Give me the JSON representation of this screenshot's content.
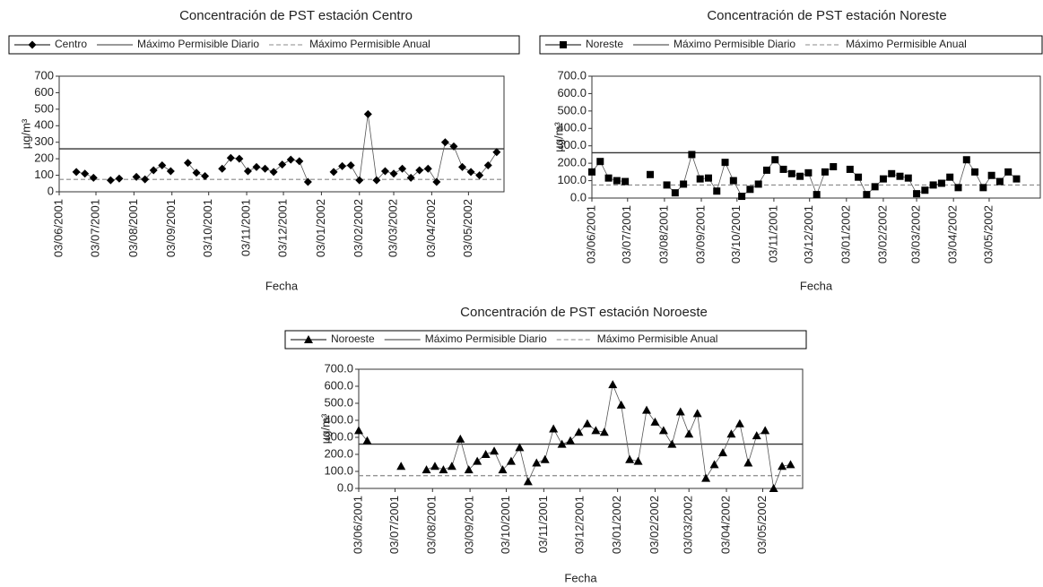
{
  "chart_data": [
    {
      "type": "line",
      "title": "Concentración de PST estación Centro",
      "xlabel": "Fecha",
      "ylabel": "µg/m³",
      "x": [
        "2001-06-03",
        "2001-06-10",
        "2001-06-17",
        "2001-06-24",
        "2001-07-01",
        "2001-07-08",
        "2001-07-15",
        "2001-07-22",
        "2001-07-29",
        "2001-08-05",
        "2001-08-12",
        "2001-08-19",
        "2001-08-26",
        "2001-09-02",
        "2001-09-09",
        "2001-09-16",
        "2001-09-23",
        "2001-09-30",
        "2001-10-07",
        "2001-10-14",
        "2001-10-21",
        "2001-10-28",
        "2001-11-04",
        "2001-11-11",
        "2001-11-18",
        "2001-11-25",
        "2001-12-02",
        "2001-12-09",
        "2001-12-16",
        "2001-12-23",
        "2001-12-30",
        "2002-01-06",
        "2002-01-13",
        "2002-01-20",
        "2002-01-27",
        "2002-02-03",
        "2002-02-10",
        "2002-02-17",
        "2002-02-24",
        "2002-03-03",
        "2002-03-10",
        "2002-03-17",
        "2002-03-24",
        "2002-03-31",
        "2002-04-07",
        "2002-04-14",
        "2002-04-21",
        "2002-04-28",
        "2002-05-05",
        "2002-05-12",
        "2002-05-19",
        "2002-05-26"
      ],
      "series": [
        {
          "name": "Centro",
          "color": "#000000",
          "marker": "diamond",
          "values": [
            null,
            null,
            120,
            110,
            85,
            null,
            70,
            80,
            null,
            90,
            75,
            130,
            160,
            125,
            null,
            175,
            115,
            95,
            null,
            140,
            205,
            200,
            125,
            150,
            140,
            120,
            165,
            195,
            185,
            60,
            null,
            null,
            120,
            155,
            160,
            70,
            470,
            70,
            125,
            110,
            140,
            85,
            130,
            140,
            60,
            300,
            275,
            150,
            120,
            100,
            160,
            240
          ]
        }
      ],
      "reference_lines": [
        {
          "name": "Máximo Permisible Diario",
          "value": 260,
          "style": "solid"
        },
        {
          "name": "Máximo Permisible Anual",
          "value": 75,
          "style": "dashed"
        }
      ],
      "xlim": [
        "2001-06-03",
        "2002-06-01"
      ],
      "xticks": [
        {
          "value": "2001-06-03",
          "label": "03/06/2001"
        },
        {
          "value": "2001-07-03",
          "label": "03/07/2001"
        },
        {
          "value": "2001-08-03",
          "label": "03/08/2001"
        },
        {
          "value": "2001-09-03",
          "label": "03/09/2001"
        },
        {
          "value": "2001-10-03",
          "label": "03/10/2001"
        },
        {
          "value": "2001-11-03",
          "label": "03/11/2001"
        },
        {
          "value": "2001-12-03",
          "label": "03/12/2001"
        },
        {
          "value": "2002-01-03",
          "label": "03/01/2002"
        },
        {
          "value": "2002-02-03",
          "label": "03/02/2002"
        },
        {
          "value": "2002-03-03",
          "label": "03/03/2002"
        },
        {
          "value": "2002-04-03",
          "label": "03/04/2002"
        },
        {
          "value": "2002-05-03",
          "label": "03/05/2002"
        }
      ],
      "ylim": [
        0,
        700
      ],
      "yticks": [
        0,
        100,
        200,
        300,
        400,
        500,
        600,
        700
      ]
    },
    {
      "type": "line",
      "title": "Concentración de PST estación Noreste",
      "xlabel": "Fecha",
      "ylabel": "µg/m³",
      "x": [
        "2001-06-03",
        "2001-06-10",
        "2001-06-17",
        "2001-06-24",
        "2001-07-01",
        "2001-07-08",
        "2001-07-15",
        "2001-07-22",
        "2001-07-29",
        "2001-08-05",
        "2001-08-12",
        "2001-08-19",
        "2001-08-26",
        "2001-09-02",
        "2001-09-09",
        "2001-09-16",
        "2001-09-23",
        "2001-09-30",
        "2001-10-07",
        "2001-10-14",
        "2001-10-21",
        "2001-10-28",
        "2001-11-04",
        "2001-11-11",
        "2001-11-18",
        "2001-11-25",
        "2001-12-02",
        "2001-12-09",
        "2001-12-16",
        "2001-12-23",
        "2001-12-30",
        "2002-01-06",
        "2002-01-13",
        "2002-01-20",
        "2002-01-27",
        "2002-02-03",
        "2002-02-10",
        "2002-02-17",
        "2002-02-24",
        "2002-03-03",
        "2002-03-10",
        "2002-03-17",
        "2002-03-24",
        "2002-03-31",
        "2002-04-07",
        "2002-04-14",
        "2002-04-21",
        "2002-04-28",
        "2002-05-05",
        "2002-05-12",
        "2002-05-19",
        "2002-05-26"
      ],
      "series": [
        {
          "name": "Noreste",
          "color": "#000000",
          "marker": "square",
          "values": [
            150,
            210,
            115,
            100,
            95,
            null,
            null,
            135,
            null,
            75,
            30,
            80,
            250,
            110,
            115,
            40,
            205,
            100,
            10,
            50,
            80,
            160,
            220,
            165,
            140,
            125,
            145,
            20,
            150,
            180,
            null,
            165,
            120,
            20,
            65,
            110,
            140,
            125,
            115,
            25,
            45,
            75,
            85,
            120,
            60,
            220,
            150,
            60,
            130,
            95,
            150,
            110
          ]
        }
      ],
      "reference_lines": [
        {
          "name": "Máximo Permisible Diario",
          "value": 260,
          "style": "solid"
        },
        {
          "name": "Máximo Permisible Anual",
          "value": 75,
          "style": "dashed"
        }
      ],
      "xlim": [
        "2001-06-03",
        "2002-06-15"
      ],
      "xticks": [
        {
          "value": "2001-06-03",
          "label": "03/06/2001"
        },
        {
          "value": "2001-07-03",
          "label": "03/07/2001"
        },
        {
          "value": "2001-08-03",
          "label": "03/08/2001"
        },
        {
          "value": "2001-09-03",
          "label": "03/09/2001"
        },
        {
          "value": "2001-10-03",
          "label": "03/10/2001"
        },
        {
          "value": "2001-11-03",
          "label": "03/11/2001"
        },
        {
          "value": "2001-12-03",
          "label": "03/12/2001"
        },
        {
          "value": "2002-01-03",
          "label": "03/01/2002"
        },
        {
          "value": "2002-02-03",
          "label": "03/02/2002"
        },
        {
          "value": "2002-03-03",
          "label": "03/03/2002"
        },
        {
          "value": "2002-04-03",
          "label": "03/04/2002"
        },
        {
          "value": "2002-05-03",
          "label": "03/05/2002"
        }
      ],
      "ylim": [
        0,
        700
      ],
      "yticks": [
        {
          "value": 0,
          "label": "0.0"
        },
        {
          "value": 100,
          "label": "100.0"
        },
        {
          "value": 200,
          "label": "200.0"
        },
        {
          "value": 300,
          "label": "300.0"
        },
        {
          "value": 400,
          "label": "400.0"
        },
        {
          "value": 500,
          "label": "500.0"
        },
        {
          "value": 600,
          "label": "600.0"
        },
        {
          "value": 700,
          "label": "700.0"
        }
      ]
    },
    {
      "type": "line",
      "title": "Concentración de PST estación Noroeste",
      "xlabel": "Fecha",
      "ylabel": "µg/m³",
      "x": [
        "2001-06-03",
        "2001-06-10",
        "2001-06-17",
        "2001-06-24",
        "2001-07-01",
        "2001-07-08",
        "2001-07-15",
        "2001-07-22",
        "2001-07-29",
        "2001-08-05",
        "2001-08-12",
        "2001-08-19",
        "2001-08-26",
        "2001-09-02",
        "2001-09-09",
        "2001-09-16",
        "2001-09-23",
        "2001-09-30",
        "2001-10-07",
        "2001-10-14",
        "2001-10-21",
        "2001-10-28",
        "2001-11-04",
        "2001-11-11",
        "2001-11-18",
        "2001-11-25",
        "2001-12-02",
        "2001-12-09",
        "2001-12-16",
        "2001-12-23",
        "2001-12-30",
        "2002-01-06",
        "2002-01-13",
        "2002-01-20",
        "2002-01-27",
        "2002-02-03",
        "2002-02-10",
        "2002-02-17",
        "2002-02-24",
        "2002-03-03",
        "2002-03-10",
        "2002-03-17",
        "2002-03-24",
        "2002-03-31",
        "2002-04-07",
        "2002-04-14",
        "2002-04-21",
        "2002-04-28",
        "2002-05-05",
        "2002-05-12",
        "2002-05-19",
        "2002-05-26"
      ],
      "series": [
        {
          "name": "Noroeste",
          "color": "#000000",
          "marker": "triangle",
          "values": [
            340,
            280,
            null,
            null,
            null,
            130,
            null,
            null,
            110,
            130,
            110,
            130,
            290,
            110,
            160,
            200,
            220,
            110,
            160,
            240,
            40,
            150,
            170,
            350,
            260,
            280,
            330,
            380,
            340,
            330,
            610,
            490,
            170,
            160,
            460,
            390,
            340,
            260,
            450,
            320,
            440,
            60,
            140,
            210,
            320,
            380,
            150,
            310,
            340,
            0,
            130,
            140
          ]
        }
      ],
      "reference_lines": [
        {
          "name": "Máximo Permisible Diario",
          "value": 260,
          "style": "solid"
        },
        {
          "name": "Máximo Permisible Anual",
          "value": 75,
          "style": "dashed"
        }
      ],
      "xlim": [
        "2001-06-03",
        "2002-06-05"
      ],
      "xticks": [
        {
          "value": "2001-06-03",
          "label": "03/06/2001"
        },
        {
          "value": "2001-07-03",
          "label": "03/07/2001"
        },
        {
          "value": "2001-08-03",
          "label": "03/08/2001"
        },
        {
          "value": "2001-09-03",
          "label": "03/09/2001"
        },
        {
          "value": "2001-10-03",
          "label": "03/10/2001"
        },
        {
          "value": "2001-11-03",
          "label": "03/11/2001"
        },
        {
          "value": "2001-12-03",
          "label": "03/12/2001"
        },
        {
          "value": "2002-01-03",
          "label": "03/01/2002"
        },
        {
          "value": "2002-02-03",
          "label": "03/02/2002"
        },
        {
          "value": "2002-03-03",
          "label": "03/03/2002"
        },
        {
          "value": "2002-04-03",
          "label": "03/04/2002"
        },
        {
          "value": "2002-05-03",
          "label": "03/05/2002"
        }
      ],
      "ylim": [
        0,
        700
      ],
      "yticks": [
        {
          "value": 0,
          "label": "0.0"
        },
        {
          "value": 100,
          "label": "100.0"
        },
        {
          "value": 200,
          "label": "200.0"
        },
        {
          "value": 300,
          "label": "300.0"
        },
        {
          "value": 400,
          "label": "400.0"
        },
        {
          "value": 500,
          "label": "500.0"
        },
        {
          "value": 600,
          "label": "600.0"
        },
        {
          "value": 700,
          "label": "700.0"
        }
      ]
    }
  ]
}
